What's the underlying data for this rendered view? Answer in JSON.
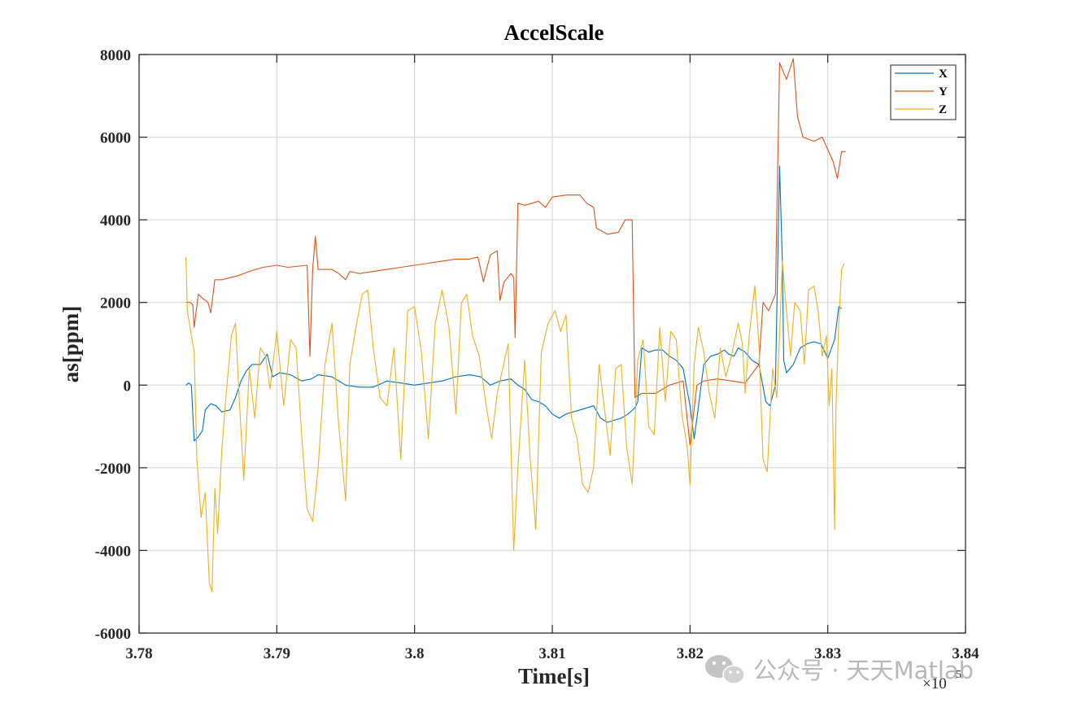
{
  "chart_data": {
    "type": "line",
    "title": "AccelScale",
    "xlabel": "Time[s]",
    "ylabel": "as[ppm]",
    "xlim": [
      3.78,
      3.84
    ],
    "ylim": [
      -6000,
      8000
    ],
    "x_ticks": [
      "3.78",
      "3.79",
      "3.8",
      "3.81",
      "3.82",
      "3.83",
      "3.84"
    ],
    "y_ticks": [
      "-6000",
      "-4000",
      "-2000",
      "0",
      "2000",
      "4000",
      "6000",
      "8000"
    ],
    "x_exponent_base": "×10",
    "x_exponent_power": "5",
    "grid": true,
    "legend_position": "top-right",
    "series": [
      {
        "name": "X",
        "color": "#0072BD",
        "points": [
          [
            3.7834,
            0
          ],
          [
            3.7836,
            50
          ],
          [
            3.7838,
            0
          ],
          [
            3.784,
            -1350
          ],
          [
            3.7843,
            -1250
          ],
          [
            3.7846,
            -1100
          ],
          [
            3.7848,
            -600
          ],
          [
            3.7852,
            -450
          ],
          [
            3.7856,
            -500
          ],
          [
            3.786,
            -650
          ],
          [
            3.7866,
            -600
          ],
          [
            3.787,
            -300
          ],
          [
            3.7874,
            100
          ],
          [
            3.7878,
            350
          ],
          [
            3.7882,
            500
          ],
          [
            3.7888,
            500
          ],
          [
            3.7893,
            750
          ],
          [
            3.7897,
            200
          ],
          [
            3.7902,
            300
          ],
          [
            3.791,
            250
          ],
          [
            3.7918,
            100
          ],
          [
            3.7925,
            150
          ],
          [
            3.793,
            250
          ],
          [
            3.794,
            200
          ],
          [
            3.795,
            0
          ],
          [
            3.796,
            -50
          ],
          [
            3.797,
            -50
          ],
          [
            3.798,
            100
          ],
          [
            3.799,
            50
          ],
          [
            3.8,
            0
          ],
          [
            3.801,
            50
          ],
          [
            3.802,
            100
          ],
          [
            3.803,
            200
          ],
          [
            3.804,
            250
          ],
          [
            3.8048,
            200
          ],
          [
            3.8055,
            0
          ],
          [
            3.8062,
            100
          ],
          [
            3.807,
            150
          ],
          [
            3.8075,
            0
          ],
          [
            3.808,
            -100
          ],
          [
            3.8085,
            -350
          ],
          [
            3.809,
            -400
          ],
          [
            3.8095,
            -500
          ],
          [
            3.81,
            -700
          ],
          [
            3.8105,
            -800
          ],
          [
            3.811,
            -700
          ],
          [
            3.812,
            -600
          ],
          [
            3.813,
            -500
          ],
          [
            3.8135,
            -800
          ],
          [
            3.814,
            -900
          ],
          [
            3.815,
            -800
          ],
          [
            3.8155,
            -700
          ],
          [
            3.816,
            -550
          ],
          [
            3.8162,
            -400
          ],
          [
            3.8165,
            900
          ],
          [
            3.817,
            800
          ],
          [
            3.8175,
            850
          ],
          [
            3.818,
            850
          ],
          [
            3.8185,
            700
          ],
          [
            3.819,
            600
          ],
          [
            3.8195,
            400
          ],
          [
            3.82,
            -500
          ],
          [
            3.8203,
            -1300
          ],
          [
            3.8205,
            -800
          ],
          [
            3.821,
            500
          ],
          [
            3.8215,
            700
          ],
          [
            3.822,
            750
          ],
          [
            3.8225,
            850
          ],
          [
            3.8228,
            750
          ],
          [
            3.8232,
            700
          ],
          [
            3.8235,
            900
          ],
          [
            3.824,
            800
          ],
          [
            3.8245,
            600
          ],
          [
            3.825,
            500
          ],
          [
            3.8255,
            -400
          ],
          [
            3.8258,
            -500
          ],
          [
            3.8262,
            0
          ],
          [
            3.8265,
            5300
          ],
          [
            3.8267,
            3000
          ],
          [
            3.8268,
            600
          ],
          [
            3.827,
            300
          ],
          [
            3.8275,
            500
          ],
          [
            3.828,
            900
          ],
          [
            3.8285,
            1000
          ],
          [
            3.829,
            1050
          ],
          [
            3.8295,
            1000
          ],
          [
            3.83,
            650
          ],
          [
            3.8305,
            1100
          ],
          [
            3.8308,
            1900
          ],
          [
            3.831,
            1850
          ]
        ]
      },
      {
        "name": "Y",
        "color": "#D95319",
        "points": [
          [
            3.7834,
            2000
          ],
          [
            3.7837,
            2000
          ],
          [
            3.7839,
            1950
          ],
          [
            3.784,
            1400
          ],
          [
            3.7843,
            2200
          ],
          [
            3.7846,
            2100
          ],
          [
            3.785,
            2000
          ],
          [
            3.7852,
            1750
          ],
          [
            3.7855,
            2550
          ],
          [
            3.786,
            2550
          ],
          [
            3.7866,
            2600
          ],
          [
            3.7872,
            2650
          ],
          [
            3.788,
            2750
          ],
          [
            3.789,
            2850
          ],
          [
            3.79,
            2900
          ],
          [
            3.7908,
            2850
          ],
          [
            3.7922,
            2900
          ],
          [
            3.7924,
            700
          ],
          [
            3.7926,
            2800
          ],
          [
            3.7928,
            3600
          ],
          [
            3.793,
            2800
          ],
          [
            3.794,
            2800
          ],
          [
            3.7945,
            2700
          ],
          [
            3.795,
            2550
          ],
          [
            3.7953,
            2750
          ],
          [
            3.796,
            2700
          ],
          [
            3.797,
            2750
          ],
          [
            3.798,
            2800
          ],
          [
            3.799,
            2850
          ],
          [
            3.8,
            2900
          ],
          [
            3.801,
            2950
          ],
          [
            3.802,
            3000
          ],
          [
            3.803,
            3050
          ],
          [
            3.804,
            3050
          ],
          [
            3.8046,
            3100
          ],
          [
            3.805,
            2500
          ],
          [
            3.8055,
            3150
          ],
          [
            3.806,
            3250
          ],
          [
            3.8062,
            2050
          ],
          [
            3.8065,
            2500
          ],
          [
            3.807,
            2700
          ],
          [
            3.8072,
            2600
          ],
          [
            3.8073,
            1150
          ],
          [
            3.8075,
            4400
          ],
          [
            3.808,
            4350
          ],
          [
            3.8085,
            4400
          ],
          [
            3.809,
            4450
          ],
          [
            3.8095,
            4300
          ],
          [
            3.81,
            4550
          ],
          [
            3.811,
            4600
          ],
          [
            3.812,
            4600
          ],
          [
            3.8125,
            4400
          ],
          [
            3.813,
            4300
          ],
          [
            3.8132,
            3800
          ],
          [
            3.814,
            3650
          ],
          [
            3.8148,
            3700
          ],
          [
            3.8153,
            4000
          ],
          [
            3.8158,
            4000
          ],
          [
            3.816,
            -300
          ],
          [
            3.8165,
            -200
          ],
          [
            3.8175,
            -200
          ],
          [
            3.8185,
            0
          ],
          [
            3.8195,
            100
          ],
          [
            3.82,
            -1450
          ],
          [
            3.8205,
            0
          ],
          [
            3.821,
            100
          ],
          [
            3.822,
            150
          ],
          [
            3.823,
            100
          ],
          [
            3.824,
            50
          ],
          [
            3.825,
            500
          ],
          [
            3.8253,
            2000
          ],
          [
            3.8257,
            1800
          ],
          [
            3.8262,
            2200
          ],
          [
            3.8265,
            7800
          ],
          [
            3.827,
            7400
          ],
          [
            3.8275,
            7900
          ],
          [
            3.8278,
            6500
          ],
          [
            3.8282,
            6000
          ],
          [
            3.829,
            5900
          ],
          [
            3.8296,
            6000
          ],
          [
            3.83,
            5700
          ],
          [
            3.8304,
            5400
          ],
          [
            3.8307,
            5000
          ],
          [
            3.831,
            5650
          ],
          [
            3.8313,
            5650
          ]
        ]
      },
      {
        "name": "Z",
        "color": "#EDB120",
        "points": [
          [
            3.7834,
            3100
          ],
          [
            3.7835,
            1800
          ],
          [
            3.7838,
            1200
          ],
          [
            3.784,
            800
          ],
          [
            3.7842,
            -1800
          ],
          [
            3.7845,
            -3200
          ],
          [
            3.7848,
            -2600
          ],
          [
            3.7851,
            -4800
          ],
          [
            3.7853,
            -5000
          ],
          [
            3.7855,
            -2500
          ],
          [
            3.7857,
            -3600
          ],
          [
            3.786,
            -1600
          ],
          [
            3.7863,
            -300
          ],
          [
            3.7867,
            1200
          ],
          [
            3.787,
            1500
          ],
          [
            3.7873,
            -500
          ],
          [
            3.7876,
            -2300
          ],
          [
            3.788,
            400
          ],
          [
            3.7884,
            -800
          ],
          [
            3.7888,
            900
          ],
          [
            3.7892,
            700
          ],
          [
            3.7895,
            -100
          ],
          [
            3.79,
            1300
          ],
          [
            3.7905,
            -500
          ],
          [
            3.791,
            1100
          ],
          [
            3.7914,
            900
          ],
          [
            3.7918,
            -1200
          ],
          [
            3.7922,
            -3000
          ],
          [
            3.7926,
            -3300
          ],
          [
            3.793,
            -2000
          ],
          [
            3.7935,
            500
          ],
          [
            3.794,
            1500
          ],
          [
            3.7945,
            -1000
          ],
          [
            3.795,
            -2800
          ],
          [
            3.7953,
            500
          ],
          [
            3.7958,
            1500
          ],
          [
            3.7962,
            2200
          ],
          [
            3.7966,
            2300
          ],
          [
            3.797,
            900
          ],
          [
            3.7975,
            -300
          ],
          [
            3.798,
            -500
          ],
          [
            3.7985,
            900
          ],
          [
            3.799,
            -1800
          ],
          [
            3.7995,
            1800
          ],
          [
            3.8,
            1900
          ],
          [
            3.8005,
            800
          ],
          [
            3.801,
            -1300
          ],
          [
            3.8015,
            1500
          ],
          [
            3.802,
            2300
          ],
          [
            3.8025,
            1400
          ],
          [
            3.803,
            -700
          ],
          [
            3.8034,
            2000
          ],
          [
            3.8038,
            2200
          ],
          [
            3.8042,
            1200
          ],
          [
            3.8047,
            700
          ],
          [
            3.8052,
            -500
          ],
          [
            3.8056,
            -1300
          ],
          [
            3.806,
            -200
          ],
          [
            3.8064,
            400
          ],
          [
            3.8068,
            1000
          ],
          [
            3.807,
            -1500
          ],
          [
            3.8072,
            -4000
          ],
          [
            3.8075,
            -2000
          ],
          [
            3.808,
            600
          ],
          [
            3.8084,
            -1800
          ],
          [
            3.8088,
            -3500
          ],
          [
            3.8092,
            800
          ],
          [
            3.8097,
            1500
          ],
          [
            3.8102,
            1800
          ],
          [
            3.8106,
            1300
          ],
          [
            3.811,
            1700
          ],
          [
            3.8114,
            -800
          ],
          [
            3.8118,
            -1300
          ],
          [
            3.8122,
            -2400
          ],
          [
            3.8126,
            -2600
          ],
          [
            3.813,
            -2000
          ],
          [
            3.8134,
            500
          ],
          [
            3.8138,
            -600
          ],
          [
            3.8142,
            -1700
          ],
          [
            3.8146,
            400
          ],
          [
            3.815,
            500
          ],
          [
            3.8154,
            -1500
          ],
          [
            3.8158,
            -2400
          ],
          [
            3.8162,
            600
          ],
          [
            3.8166,
            1100
          ],
          [
            3.817,
            -1000
          ],
          [
            3.8174,
            -1200
          ],
          [
            3.8178,
            1400
          ],
          [
            3.8182,
            -400
          ],
          [
            3.8186,
            1300
          ],
          [
            3.819,
            1100
          ],
          [
            3.8194,
            -700
          ],
          [
            3.8198,
            -1500
          ],
          [
            3.82,
            -2400
          ],
          [
            3.8203,
            500
          ],
          [
            3.8206,
            1400
          ],
          [
            3.821,
            800
          ],
          [
            3.8214,
            -200
          ],
          [
            3.8218,
            -800
          ],
          [
            3.8222,
            900
          ],
          [
            3.8226,
            200
          ],
          [
            3.823,
            700
          ],
          [
            3.8235,
            1500
          ],
          [
            3.8238,
            1000
          ],
          [
            3.824,
            -200
          ],
          [
            3.8243,
            1200
          ],
          [
            3.8247,
            2400
          ],
          [
            3.825,
            1000
          ],
          [
            3.8253,
            -1800
          ],
          [
            3.8256,
            -2100
          ],
          [
            3.826,
            400
          ],
          [
            3.8263,
            -300
          ],
          [
            3.8265,
            1200
          ],
          [
            3.8267,
            3000
          ],
          [
            3.827,
            1800
          ],
          [
            3.8273,
            700
          ],
          [
            3.8276,
            2000
          ],
          [
            3.828,
            1800
          ],
          [
            3.8283,
            500
          ],
          [
            3.8286,
            2300
          ],
          [
            3.829,
            2400
          ],
          [
            3.8293,
            1800
          ],
          [
            3.8296,
            700
          ],
          [
            3.8299,
            1200
          ],
          [
            3.8301,
            -500
          ],
          [
            3.8303,
            400
          ],
          [
            3.8305,
            -3500
          ],
          [
            3.8306,
            -500
          ],
          [
            3.8308,
            1500
          ],
          [
            3.831,
            2800
          ],
          [
            3.8312,
            2950
          ]
        ]
      }
    ]
  },
  "watermark": {
    "icon": "wechat-icon",
    "text": "公众号 · 天天Matlab"
  }
}
